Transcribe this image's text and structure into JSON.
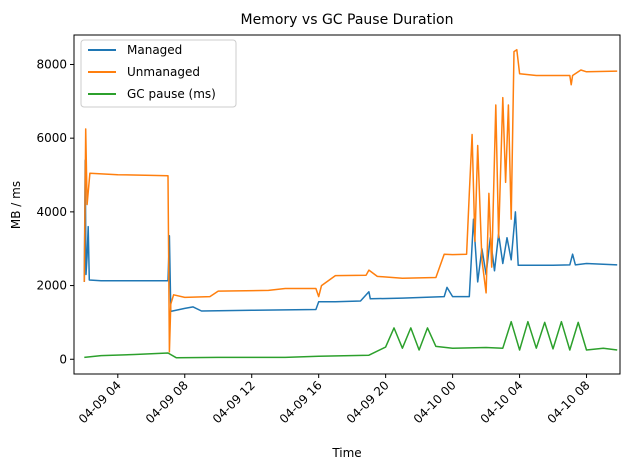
{
  "chart_data": {
    "type": "line",
    "title": "Memory vs GC Pause Duration",
    "xlabel": "Time",
    "ylabel": "MB / ms",
    "xlim": [
      "2024-04-09T01:23",
      "2024-04-10T10:00"
    ],
    "ylim": [
      -400,
      8800
    ],
    "x_ticks": [
      "04-09 04",
      "04-09 08",
      "04-09 12",
      "04-09 16",
      "04-09 20",
      "04-10 00",
      "04-10 04",
      "04-10 08"
    ],
    "y_ticks": [
      0,
      2000,
      4000,
      6000,
      8000
    ],
    "grid": false,
    "legend_position": "top-left",
    "series": [
      {
        "name": "Managed",
        "color": "#1f77b4",
        "points": [
          [
            "2024-04-09T02:00",
            2100
          ],
          [
            "2024-04-09T02:03",
            5400
          ],
          [
            "2024-04-09T02:06",
            2300
          ],
          [
            "2024-04-09T02:10",
            2800
          ],
          [
            "2024-04-09T02:14",
            3600
          ],
          [
            "2024-04-09T02:18",
            2150
          ],
          [
            "2024-04-09T03:00",
            2130
          ],
          [
            "2024-04-09T05:00",
            2130
          ],
          [
            "2024-04-09T07:00",
            2130
          ],
          [
            "2024-04-09T07:05",
            3350
          ],
          [
            "2024-04-09T07:10",
            1300
          ],
          [
            "2024-04-09T08:00",
            1380
          ],
          [
            "2024-04-09T08:30",
            1420
          ],
          [
            "2024-04-09T09:00",
            1310
          ],
          [
            "2024-04-09T12:00",
            1330
          ],
          [
            "2024-04-09T15:50",
            1350
          ],
          [
            "2024-04-09T16:00",
            1560
          ],
          [
            "2024-04-09T17:00",
            1560
          ],
          [
            "2024-04-09T18:30",
            1580
          ],
          [
            "2024-04-09T19:00",
            1830
          ],
          [
            "2024-04-09T19:05",
            1640
          ],
          [
            "2024-04-09T21:00",
            1660
          ],
          [
            "2024-04-09T23:30",
            1700
          ],
          [
            "2024-04-09T23:40",
            1950
          ],
          [
            "2024-04-10T00:00",
            1700
          ],
          [
            "2024-04-10T01:00",
            1700
          ],
          [
            "2024-04-10T01:15",
            3800
          ],
          [
            "2024-04-10T01:30",
            2100
          ],
          [
            "2024-04-10T01:45",
            3000
          ],
          [
            "2024-04-10T02:00",
            2300
          ],
          [
            "2024-04-10T02:15",
            3300
          ],
          [
            "2024-04-10T02:30",
            2400
          ],
          [
            "2024-04-10T02:45",
            3400
          ],
          [
            "2024-04-10T03:00",
            2600
          ],
          [
            "2024-04-10T03:15",
            3300
          ],
          [
            "2024-04-10T03:30",
            2700
          ],
          [
            "2024-04-10T03:45",
            4000
          ],
          [
            "2024-04-10T03:55",
            2550
          ],
          [
            "2024-04-10T06:00",
            2550
          ],
          [
            "2024-04-10T07:00",
            2560
          ],
          [
            "2024-04-10T07:10",
            2850
          ],
          [
            "2024-04-10T07:20",
            2560
          ],
          [
            "2024-04-10T08:00",
            2600
          ],
          [
            "2024-04-10T09:50",
            2560
          ]
        ]
      },
      {
        "name": "Unmanaged",
        "color": "#ff7f0e",
        "points": [
          [
            "2024-04-09T02:00",
            2100
          ],
          [
            "2024-04-09T02:05",
            6250
          ],
          [
            "2024-04-09T02:10",
            4200
          ],
          [
            "2024-04-09T02:20",
            5050
          ],
          [
            "2024-04-09T04:00",
            5010
          ],
          [
            "2024-04-09T06:00",
            4990
          ],
          [
            "2024-04-09T07:00",
            4980
          ],
          [
            "2024-04-09T07:05",
            200
          ],
          [
            "2024-04-09T07:10",
            1500
          ],
          [
            "2024-04-09T07:20",
            1750
          ],
          [
            "2024-04-09T08:00",
            1680
          ],
          [
            "2024-04-09T09:30",
            1700
          ],
          [
            "2024-04-09T10:00",
            1850
          ],
          [
            "2024-04-09T13:00",
            1870
          ],
          [
            "2024-04-09T14:00",
            1920
          ],
          [
            "2024-04-09T15:50",
            1920
          ],
          [
            "2024-04-09T16:00",
            1700
          ],
          [
            "2024-04-09T16:10",
            2000
          ],
          [
            "2024-04-09T17:00",
            2270
          ],
          [
            "2024-04-09T18:50",
            2280
          ],
          [
            "2024-04-09T19:00",
            2420
          ],
          [
            "2024-04-09T19:30",
            2250
          ],
          [
            "2024-04-09T21:00",
            2200
          ],
          [
            "2024-04-09T23:00",
            2220
          ],
          [
            "2024-04-09T23:30",
            2850
          ],
          [
            "2024-04-10T00:00",
            2840
          ],
          [
            "2024-04-10T00:50",
            2850
          ],
          [
            "2024-04-10T01:00",
            4500
          ],
          [
            "2024-04-10T01:10",
            6100
          ],
          [
            "2024-04-10T01:20",
            3200
          ],
          [
            "2024-04-10T01:30",
            5800
          ],
          [
            "2024-04-10T01:45",
            2700
          ],
          [
            "2024-04-10T02:00",
            1800
          ],
          [
            "2024-04-10T02:10",
            4500
          ],
          [
            "2024-04-10T02:20",
            2500
          ],
          [
            "2024-04-10T02:35",
            6900
          ],
          [
            "2024-04-10T02:45",
            3300
          ],
          [
            "2024-04-10T03:00",
            7100
          ],
          [
            "2024-04-10T03:10",
            4800
          ],
          [
            "2024-04-10T03:20",
            6900
          ],
          [
            "2024-04-10T03:30",
            3800
          ],
          [
            "2024-04-10T03:40",
            8350
          ],
          [
            "2024-04-10T03:50",
            8400
          ],
          [
            "2024-04-10T04:00",
            7750
          ],
          [
            "2024-04-10T05:00",
            7700
          ],
          [
            "2024-04-10T07:00",
            7700
          ],
          [
            "2024-04-10T07:05",
            7450
          ],
          [
            "2024-04-10T07:10",
            7700
          ],
          [
            "2024-04-10T07:40",
            7850
          ],
          [
            "2024-04-10T08:00",
            7800
          ],
          [
            "2024-04-10T09:50",
            7820
          ]
        ]
      },
      {
        "name": "GC pause (ms)",
        "color": "#2ca02c",
        "points": [
          [
            "2024-04-09T02:00",
            50
          ],
          [
            "2024-04-09T03:00",
            100
          ],
          [
            "2024-04-09T05:00",
            130
          ],
          [
            "2024-04-09T07:00",
            170
          ],
          [
            "2024-04-09T07:30",
            40
          ],
          [
            "2024-04-09T10:00",
            50
          ],
          [
            "2024-04-09T14:00",
            50
          ],
          [
            "2024-04-09T16:00",
            80
          ],
          [
            "2024-04-09T19:00",
            110
          ],
          [
            "2024-04-09T20:00",
            330
          ],
          [
            "2024-04-09T20:30",
            850
          ],
          [
            "2024-04-09T21:00",
            300
          ],
          [
            "2024-04-09T21:30",
            850
          ],
          [
            "2024-04-09T22:00",
            250
          ],
          [
            "2024-04-09T22:30",
            850
          ],
          [
            "2024-04-09T23:00",
            350
          ],
          [
            "2024-04-10T00:00",
            300
          ],
          [
            "2024-04-10T02:00",
            320
          ],
          [
            "2024-04-10T03:00",
            300
          ],
          [
            "2024-04-10T03:30",
            1020
          ],
          [
            "2024-04-10T04:00",
            250
          ],
          [
            "2024-04-10T04:30",
            1020
          ],
          [
            "2024-04-10T05:00",
            300
          ],
          [
            "2024-04-10T05:30",
            1000
          ],
          [
            "2024-04-10T06:00",
            280
          ],
          [
            "2024-04-10T06:30",
            1020
          ],
          [
            "2024-04-10T07:00",
            250
          ],
          [
            "2024-04-10T07:30",
            1000
          ],
          [
            "2024-04-10T08:00",
            250
          ],
          [
            "2024-04-10T09:00",
            300
          ],
          [
            "2024-04-10T09:50",
            250
          ]
        ]
      }
    ]
  }
}
